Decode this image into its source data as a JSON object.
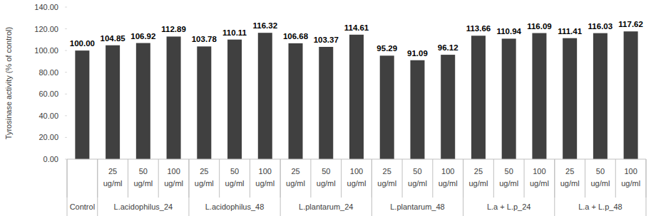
{
  "chart_data": {
    "type": "bar",
    "y_label": "Tyrosinase activity (% of control)",
    "categories": [
      null,
      "25 ug/ml",
      "50 ug/ml",
      "100 ug/ml",
      "25 ug/ml",
      "50 ug/ml",
      "100 ug/ml",
      "25 ug/ml",
      "50 ug/ml",
      "100 ug/ml",
      "25 ug/ml",
      "50 ug/ml",
      "100 ug/ml",
      "25 ug/ml",
      "50 ug/ml",
      "100 ug/ml",
      "25 ug/ml",
      "50 ug/ml",
      "100 ug/ml"
    ],
    "groups": [
      {
        "label": "Control",
        "size": 1
      },
      {
        "label": "L.acidophilus_24",
        "size": 3
      },
      {
        "label": "L.acidophilus_48",
        "size": 3
      },
      {
        "label": "L.plantarum_24",
        "size": 3
      },
      {
        "label": "L.plantarum_48",
        "size": 3
      },
      {
        "label": "L.a + L.p_24",
        "size": 3
      },
      {
        "label": "L.a + L.p_48",
        "size": 3
      }
    ],
    "values": [
      100.0,
      104.85,
      106.92,
      112.89,
      103.78,
      110.11,
      116.32,
      106.68,
      103.37,
      114.61,
      95.29,
      91.09,
      96.12,
      113.66,
      110.94,
      116.09,
      111.41,
      116.03,
      117.62
    ],
    "value_labels": [
      "100.00",
      "104.85",
      "106.92",
      "112.89",
      "103.78",
      "110.11",
      "116.32",
      "106.68",
      "103.37",
      "114.61",
      "95.29",
      "91.09",
      "96.12",
      "113.66",
      "110.94",
      "116.09",
      "111.41",
      "116.03",
      "117.62"
    ],
    "color": "#404040",
    "ylim": [
      0,
      140
    ],
    "yticks": [
      {
        "value": 0,
        "label": "0.00"
      },
      {
        "value": 20,
        "label": "20.00"
      },
      {
        "value": 40,
        "label": "40.00"
      },
      {
        "value": 60,
        "label": "60.00"
      },
      {
        "value": 80,
        "label": "80.00"
      },
      {
        "value": 100,
        "label": "100.00"
      },
      {
        "value": 120,
        "label": "120.00"
      },
      {
        "value": 140,
        "label": "140.00"
      }
    ],
    "grid": false,
    "data_labels": true
  }
}
